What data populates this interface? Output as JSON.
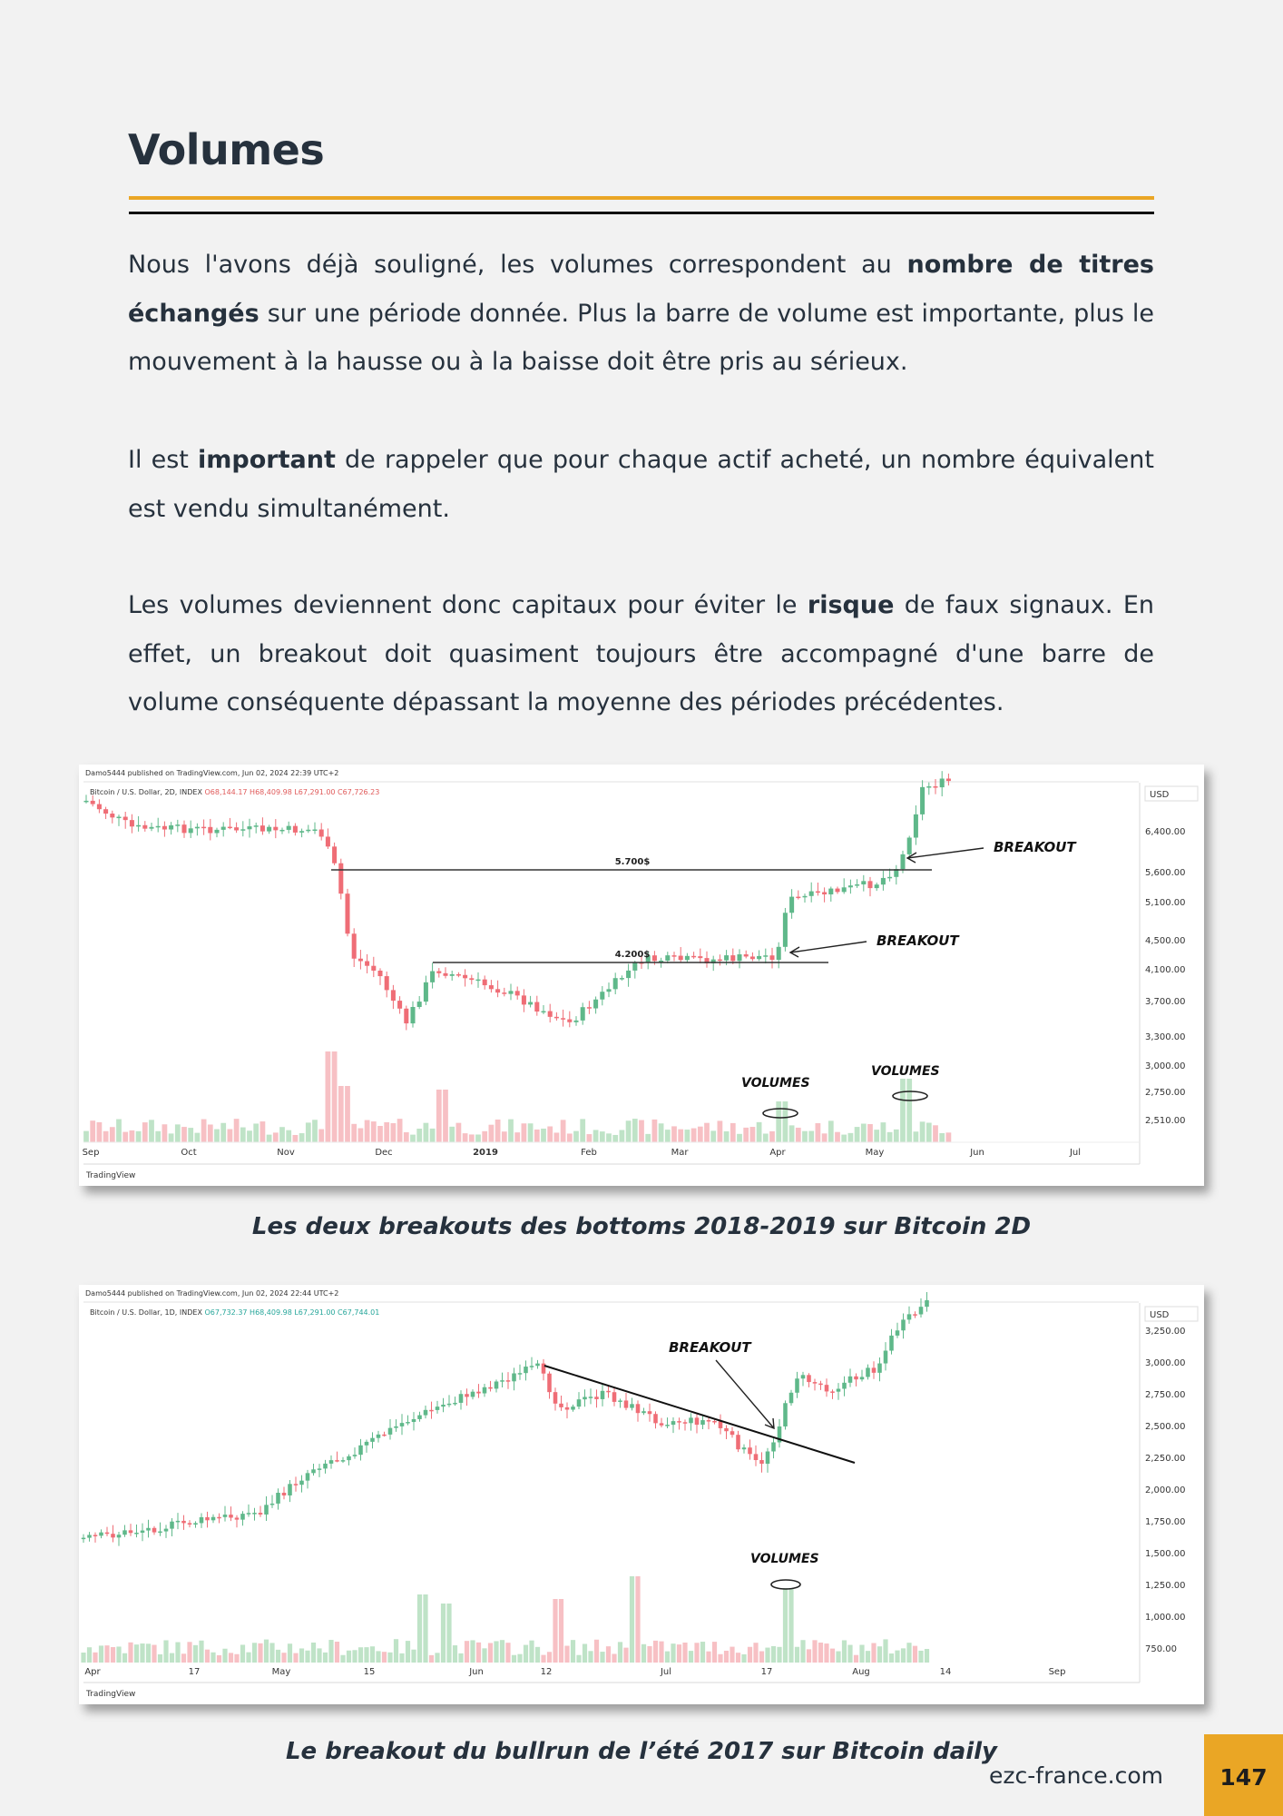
{
  "page": {
    "title": "Volumes",
    "paragraphs": [
      {
        "segments": [
          {
            "text": "Nous l'avons déjà souligné, les volumes correspondent au "
          },
          {
            "text": "nombre de titres échangés",
            "bold": true
          },
          {
            "text": " sur une période donnée. Plus la barre de volume est importante, plus le mouvement à la hausse ou à la baisse doit être pris au sérieux."
          }
        ]
      },
      {
        "segments": [
          {
            "text": "Il est "
          },
          {
            "text": "important",
            "bold": true
          },
          {
            "text": " de rappeler que pour chaque actif acheté, un nombre équivalent est vendu simultanément."
          }
        ]
      },
      {
        "segments": [
          {
            "text": "Les volumes deviennent donc capitaux pour éviter le "
          },
          {
            "text": "risque",
            "bold": true
          },
          {
            "text": " de faux signaux. En effet, un breakout doit quasiment toujours être accompagné d'une barre de volume conséquente dépassant la moyenne des périodes précédentes."
          }
        ]
      }
    ],
    "captions": [
      "Les deux breakouts des bottoms 2018-2019 sur Bitcoin 2D",
      "Le breakout du bullrun de l’été 2017 sur Bitcoin daily"
    ],
    "footer": {
      "site": "ezc-france.com",
      "page_number": "147"
    }
  },
  "chart_data": [
    {
      "type": "candlestick",
      "published": "Damo5444 published on TradingView.com, Jun 02, 2024 22:39 UTC+2",
      "symbol": "Bitcoin / U.S. Dollar, 2D, INDEX",
      "ohlc": {
        "o": "O68,144.17",
        "h": "H68,409.98",
        "l": "L67,291.00",
        "c": "C67,726.23"
      },
      "currency": "USD",
      "y_ticks": [
        "6,400.00",
        "5,600.00",
        "5,100.00",
        "4,500.00",
        "4,100.00",
        "3,700.00",
        "3,300.00"
      ],
      "volume_ticks": [
        "3,000.00",
        "2,750.00",
        "2,510.00"
      ],
      "x_ticks": [
        "Sep",
        "Oct",
        "Nov",
        "Dec",
        "2019",
        "Feb",
        "Mar",
        "Apr",
        "May",
        "Jun",
        "Jul"
      ],
      "annotations": {
        "levels": [
          "5.700$",
          "4.200$"
        ],
        "breakout": "BREAKOUT",
        "volumes": "VOLUMES"
      },
      "brand": "TradingView"
    },
    {
      "type": "candlestick",
      "published": "Damo5444 published on TradingView.com, Jun 02, 2024 22:44 UTC+2",
      "symbol": "Bitcoin / U.S. Dollar, 1D, INDEX",
      "ohlc": {
        "o": "O67,732.37",
        "h": "H68,409.98",
        "l": "L67,291.00",
        "c": "C67,744.01"
      },
      "currency": "USD",
      "y_ticks": [
        "3,250.00",
        "3,000.00",
        "2,750.00",
        "2,500.00",
        "2,250.00",
        "2,000.00",
        "1,750.00",
        "1,500.00",
        "1,250.00",
        "1,000.00",
        "750.00"
      ],
      "x_ticks": [
        "Apr",
        "17",
        "May",
        "15",
        "Jun",
        "12",
        "Jul",
        "17",
        "Aug",
        "14",
        "Sep"
      ],
      "annotations": {
        "breakout": "BREAKOUT",
        "volumes": "VOLUMES"
      },
      "brand": "TradingView"
    }
  ]
}
